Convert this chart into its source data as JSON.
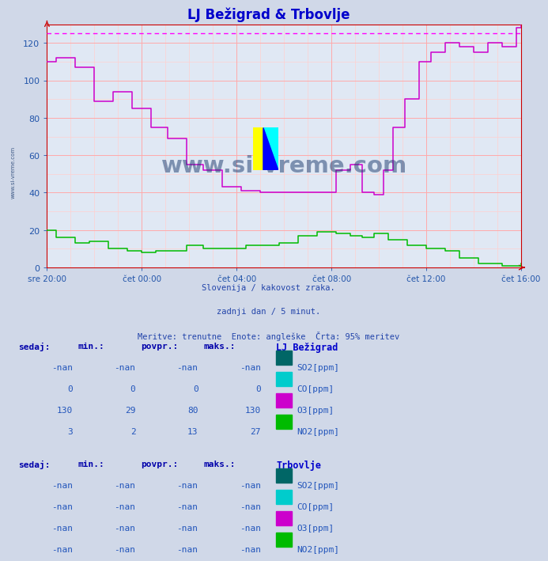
{
  "title": "LJ Bežigrad & Trbovlje",
  "title_color": "#0000cc",
  "bg_color": "#d0d8e8",
  "plot_bg_color": "#e0e8f4",
  "grid_color_major": "#ffaaaa",
  "grid_color_minor": "#ffd0d0",
  "axis_color": "#cc0000",
  "tick_color": "#2255aa",
  "subtitle_color": "#2244aa",
  "ref_line_y": 125,
  "ref_line_color": "#ff00ff",
  "o3_color": "#cc00cc",
  "no2_color": "#00bb00",
  "co_color": "#00cccc",
  "so2_color": "#006666",
  "watermark_color": "#1a3a6e",
  "table_header_color": "#0000aa",
  "table_value_color": "#2255bb",
  "table_label_color": "#0000cc",
  "lj_label": "LJ Bežigrad",
  "tr_label": "Trbovlje",
  "subtitle_lines": [
    "Slovenija / kakovost zraka.",
    "zadnji dan / 5 minut.",
    "Meritve: trenutne  Enote: angleške  Črta: 95% meritev"
  ],
  "xlabels": [
    "sre 20:00",
    "čet 00:00",
    "čet 04:00",
    "čet 08:00",
    "čet 12:00",
    "čet 16:00"
  ],
  "ylim": [
    0,
    130
  ],
  "yticks": [
    0,
    20,
    40,
    60,
    80,
    100,
    120
  ],
  "o3_x": [
    0.0,
    0.02,
    0.06,
    0.1,
    0.14,
    0.18,
    0.22,
    0.255,
    0.295,
    0.33,
    0.37,
    0.41,
    0.45,
    0.49,
    0.53,
    0.57,
    0.61,
    0.64,
    0.665,
    0.69,
    0.71,
    0.73,
    0.755,
    0.785,
    0.81,
    0.84,
    0.87,
    0.9,
    0.93,
    0.96,
    0.99,
    1.0
  ],
  "o3_y": [
    110,
    112,
    107,
    89,
    94,
    85,
    75,
    69,
    55,
    52,
    43,
    41,
    40,
    40,
    40,
    40,
    52,
    55,
    40,
    39,
    52,
    75,
    90,
    110,
    115,
    120,
    118,
    115,
    120,
    118,
    128,
    130
  ],
  "no2_x": [
    0.0,
    0.02,
    0.06,
    0.09,
    0.13,
    0.17,
    0.2,
    0.23,
    0.26,
    0.295,
    0.33,
    0.37,
    0.42,
    0.49,
    0.53,
    0.57,
    0.61,
    0.64,
    0.665,
    0.69,
    0.72,
    0.76,
    0.8,
    0.84,
    0.87,
    0.91,
    0.96,
    1.0
  ],
  "no2_y": [
    20,
    16,
    13,
    14,
    10,
    9,
    8,
    9,
    9,
    12,
    10,
    10,
    12,
    13,
    17,
    19,
    18,
    17,
    16,
    18,
    15,
    12,
    10,
    9,
    5,
    2,
    1,
    2
  ]
}
